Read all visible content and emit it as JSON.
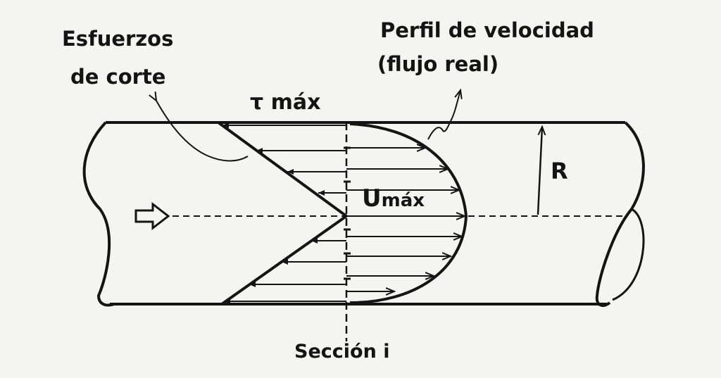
{
  "labels": {
    "shear_line1": "Esfuerzos",
    "shear_line2": "de corte",
    "profile_line1": "Perfil de velocidad",
    "profile_line2": "(flujo real)",
    "tau_max": "τ máx",
    "u_max_main": "U",
    "u_max_sub": "máx",
    "radius": "R",
    "section": "Sección i"
  },
  "colors": {
    "ink": "#141414",
    "paper": "#f4f4f2"
  },
  "icons": {
    "flow_direction": "hollow-right-arrow-icon"
  }
}
